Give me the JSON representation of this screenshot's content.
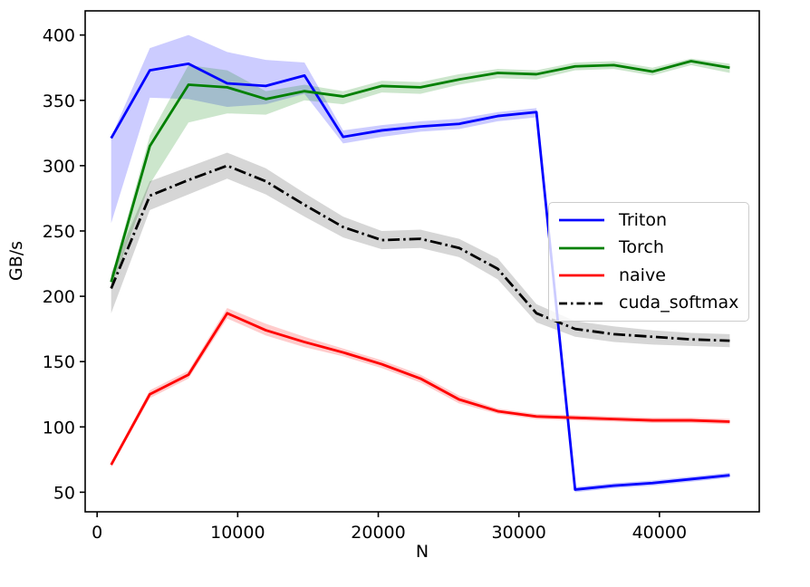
{
  "chart_data": {
    "type": "line",
    "title": "",
    "xlabel": "N",
    "ylabel": "GB/s",
    "xlim": [
      -850,
      47100
    ],
    "ylim": [
      35,
      418.5
    ],
    "xticks": [
      0,
      10000,
      20000,
      30000,
      40000
    ],
    "yticks": [
      50,
      100,
      150,
      200,
      250,
      300,
      350,
      400
    ],
    "grid": false,
    "legend_position": "center right",
    "x": [
      1000,
      3750,
      6500,
      9250,
      12000,
      14750,
      17500,
      20250,
      23000,
      25750,
      28500,
      31250,
      34000,
      36750,
      39500,
      42250,
      45000
    ],
    "series": [
      {
        "name": "Triton",
        "color": "#0000ff",
        "linestyle": "solid",
        "values": [
          321,
          373,
          378,
          363,
          361,
          369,
          322,
          327,
          330,
          332,
          338,
          341,
          52,
          55,
          57,
          60,
          63
        ],
        "band_lo": [
          256,
          352,
          351,
          345,
          347,
          355,
          317,
          322,
          326,
          328,
          334,
          337,
          50,
          53,
          55,
          58,
          61
        ],
        "band_hi": [
          322,
          390,
          400,
          387,
          381,
          379,
          327,
          331,
          334,
          336,
          341,
          344,
          54,
          57,
          59,
          62,
          65
        ]
      },
      {
        "name": "Torch",
        "color": "#008000",
        "linestyle": "solid",
        "values": [
          211,
          315,
          362,
          360,
          351,
          357,
          353,
          361,
          360,
          366,
          371,
          370,
          376,
          377,
          372,
          380,
          375
        ],
        "band_lo": [
          207,
          286,
          333,
          340,
          339,
          350,
          347,
          356,
          355,
          362,
          367,
          366,
          373,
          374,
          369,
          377,
          371
        ],
        "band_hi": [
          215,
          323,
          377,
          373,
          357,
          362,
          357,
          365,
          364,
          370,
          374,
          373,
          379,
          380,
          375,
          382,
          378
        ]
      },
      {
        "name": "naive",
        "color": "#ff0000",
        "linestyle": "solid",
        "values": [
          71,
          125,
          140,
          187,
          174,
          165,
          157,
          148,
          137,
          121,
          112,
          108,
          107,
          106,
          105,
          105,
          104
        ],
        "band_lo": [
          69,
          122,
          137,
          183,
          170,
          161,
          154,
          145,
          134,
          118,
          110,
          106,
          105,
          104,
          103,
          103,
          102
        ],
        "band_hi": [
          73,
          128,
          143,
          191,
          179,
          169,
          160,
          151,
          140,
          124,
          114,
          110,
          109,
          108,
          107,
          107,
          106
        ]
      },
      {
        "name": "cuda_softmax",
        "color": "#000000",
        "linestyle": "dashdot",
        "values": [
          206,
          277,
          289,
          300,
          288,
          270,
          253,
          243,
          244,
          237,
          221,
          187,
          175,
          171,
          169,
          167,
          166
        ],
        "band_lo": [
          187,
          266,
          278,
          290,
          278,
          261,
          245,
          236,
          237,
          230,
          213,
          180,
          169,
          165,
          163,
          162,
          161
        ],
        "band_hi": [
          218,
          288,
          299,
          310,
          298,
          279,
          261,
          250,
          251,
          244,
          229,
          194,
          181,
          177,
          174,
          172,
          171
        ]
      }
    ]
  }
}
